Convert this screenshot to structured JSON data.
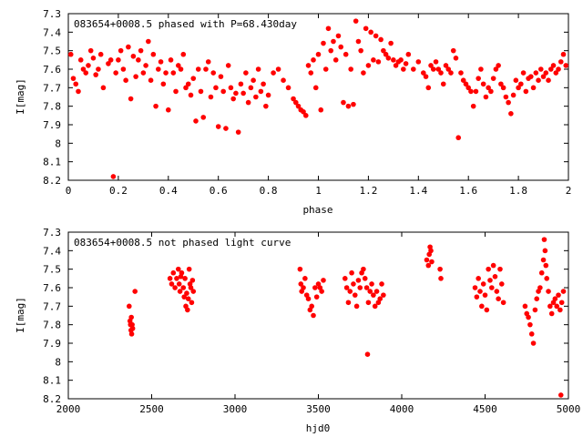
{
  "chart_data": [
    {
      "type": "scatter",
      "title": "083654+0008.5 phased with P=68.430day",
      "xlabel": "phase",
      "ylabel": "I[mag]",
      "xlim": [
        0,
        2
      ],
      "ylim": [
        8.2,
        7.3
      ],
      "y_inverted": true,
      "x_ticks": [
        0,
        0.2,
        0.4,
        0.6,
        0.8,
        1,
        1.2,
        1.4,
        1.6,
        1.8,
        2
      ],
      "x_tick_labels": [
        "0",
        "0.2",
        "0.4",
        "0.6",
        "0.8",
        "1",
        "1.2",
        "1.4",
        "1.6",
        "1.8",
        "2"
      ],
      "y_ticks": [
        7.3,
        7.4,
        7.5,
        7.6,
        7.7,
        7.8,
        7.9,
        8,
        8.1,
        8.2
      ],
      "y_tick_labels": [
        "7.3",
        "7.4",
        "7.5",
        "7.6",
        "7.7",
        "7.8",
        "7.9",
        "8",
        "8.1",
        "8.2"
      ],
      "grid": false,
      "marker_color": "#ff0000",
      "points": [
        [
          0.01,
          7.52
        ],
        [
          0.02,
          7.65
        ],
        [
          0.03,
          7.68
        ],
        [
          0.04,
          7.72
        ],
        [
          0.05,
          7.55
        ],
        [
          0.06,
          7.6
        ],
        [
          0.07,
          7.62
        ],
        [
          0.08,
          7.58
        ],
        [
          0.09,
          7.5
        ],
        [
          0.1,
          7.54
        ],
        [
          0.11,
          7.63
        ],
        [
          0.12,
          7.6
        ],
        [
          0.13,
          7.52
        ],
        [
          0.14,
          7.7
        ],
        [
          0.16,
          7.57
        ],
        [
          0.17,
          7.55
        ],
        [
          0.18,
          8.18
        ],
        [
          0.19,
          7.62
        ],
        [
          0.2,
          7.55
        ],
        [
          0.21,
          7.5
        ],
        [
          0.22,
          7.6
        ],
        [
          0.23,
          7.66
        ],
        [
          0.24,
          7.48
        ],
        [
          0.25,
          7.76
        ],
        [
          0.26,
          7.53
        ],
        [
          0.27,
          7.64
        ],
        [
          0.28,
          7.55
        ],
        [
          0.29,
          7.5
        ],
        [
          0.3,
          7.62
        ],
        [
          0.31,
          7.58
        ],
        [
          0.32,
          7.45
        ],
        [
          0.33,
          7.66
        ],
        [
          0.34,
          7.52
        ],
        [
          0.35,
          7.8
        ],
        [
          0.36,
          7.6
        ],
        [
          0.37,
          7.56
        ],
        [
          0.38,
          7.68
        ],
        [
          0.39,
          7.62
        ],
        [
          0.4,
          7.82
        ],
        [
          0.41,
          7.55
        ],
        [
          0.42,
          7.62
        ],
        [
          0.43,
          7.72
        ],
        [
          0.44,
          7.58
        ],
        [
          0.45,
          7.6
        ],
        [
          0.46,
          7.52
        ],
        [
          0.47,
          7.7
        ],
        [
          0.48,
          7.68
        ],
        [
          0.49,
          7.74
        ],
        [
          0.5,
          7.65
        ],
        [
          0.51,
          7.88
        ],
        [
          0.52,
          7.6
        ],
        [
          0.53,
          7.72
        ],
        [
          0.54,
          7.86
        ],
        [
          0.55,
          7.6
        ],
        [
          0.56,
          7.56
        ],
        [
          0.57,
          7.75
        ],
        [
          0.58,
          7.62
        ],
        [
          0.59,
          7.7
        ],
        [
          0.6,
          7.91
        ],
        [
          0.61,
          7.64
        ],
        [
          0.62,
          7.72
        ],
        [
          0.63,
          7.92
        ],
        [
          0.64,
          7.58
        ],
        [
          0.65,
          7.7
        ],
        [
          0.66,
          7.76
        ],
        [
          0.67,
          7.73
        ],
        [
          0.68,
          7.94
        ],
        [
          0.69,
          7.68
        ],
        [
          0.7,
          7.73
        ],
        [
          0.71,
          7.62
        ],
        [
          0.72,
          7.78
        ],
        [
          0.73,
          7.7
        ],
        [
          0.74,
          7.66
        ],
        [
          0.75,
          7.75
        ],
        [
          0.76,
          7.6
        ],
        [
          0.77,
          7.72
        ],
        [
          0.78,
          7.68
        ],
        [
          0.79,
          7.8
        ],
        [
          0.8,
          7.74
        ],
        [
          0.82,
          7.62
        ],
        [
          0.84,
          7.6
        ],
        [
          0.86,
          7.66
        ],
        [
          0.88,
          7.7
        ],
        [
          0.9,
          7.76
        ],
        [
          0.91,
          7.78
        ],
        [
          0.92,
          7.8
        ],
        [
          0.93,
          7.82
        ],
        [
          0.94,
          7.83
        ],
        [
          0.95,
          7.85
        ],
        [
          0.96,
          7.58
        ],
        [
          0.97,
          7.62
        ],
        [
          0.98,
          7.55
        ],
        [
          0.99,
          7.7
        ],
        [
          1.0,
          7.52
        ],
        [
          1.01,
          7.82
        ],
        [
          1.02,
          7.46
        ],
        [
          1.03,
          7.6
        ],
        [
          1.04,
          7.38
        ],
        [
          1.05,
          7.5
        ],
        [
          1.06,
          7.45
        ],
        [
          1.07,
          7.55
        ],
        [
          1.08,
          7.42
        ],
        [
          1.09,
          7.48
        ],
        [
          1.1,
          7.78
        ],
        [
          1.11,
          7.52
        ],
        [
          1.12,
          7.8
        ],
        [
          1.13,
          7.6
        ],
        [
          1.14,
          7.79
        ],
        [
          1.15,
          7.34
        ],
        [
          1.16,
          7.45
        ],
        [
          1.17,
          7.5
        ],
        [
          1.18,
          7.62
        ],
        [
          1.19,
          7.38
        ],
        [
          1.2,
          7.58
        ],
        [
          1.21,
          7.4
        ],
        [
          1.22,
          7.55
        ],
        [
          1.23,
          7.42
        ],
        [
          1.24,
          7.56
        ],
        [
          1.25,
          7.44
        ],
        [
          1.26,
          7.5
        ],
        [
          1.27,
          7.52
        ],
        [
          1.28,
          7.54
        ],
        [
          1.29,
          7.46
        ],
        [
          1.3,
          7.55
        ],
        [
          1.31,
          7.58
        ],
        [
          1.32,
          7.56
        ],
        [
          1.33,
          7.55
        ],
        [
          1.34,
          7.6
        ],
        [
          1.35,
          7.57
        ],
        [
          1.36,
          7.52
        ],
        [
          1.38,
          7.6
        ],
        [
          1.4,
          7.56
        ],
        [
          1.42,
          7.62
        ],
        [
          1.43,
          7.64
        ],
        [
          1.44,
          7.7
        ],
        [
          1.45,
          7.58
        ],
        [
          1.46,
          7.6
        ],
        [
          1.47,
          7.56
        ],
        [
          1.48,
          7.6
        ],
        [
          1.49,
          7.62
        ],
        [
          1.5,
          7.68
        ],
        [
          1.51,
          7.58
        ],
        [
          1.52,
          7.6
        ],
        [
          1.53,
          7.62
        ],
        [
          1.54,
          7.5
        ],
        [
          1.55,
          7.54
        ],
        [
          1.56,
          7.97
        ],
        [
          1.57,
          7.62
        ],
        [
          1.58,
          7.66
        ],
        [
          1.59,
          7.68
        ],
        [
          1.6,
          7.7
        ],
        [
          1.61,
          7.72
        ],
        [
          1.62,
          7.8
        ],
        [
          1.63,
          7.72
        ],
        [
          1.64,
          7.65
        ],
        [
          1.65,
          7.6
        ],
        [
          1.66,
          7.68
        ],
        [
          1.67,
          7.75
        ],
        [
          1.68,
          7.7
        ],
        [
          1.69,
          7.72
        ],
        [
          1.7,
          7.65
        ],
        [
          1.71,
          7.6
        ],
        [
          1.72,
          7.58
        ],
        [
          1.73,
          7.68
        ],
        [
          1.74,
          7.7
        ],
        [
          1.75,
          7.75
        ],
        [
          1.76,
          7.78
        ],
        [
          1.77,
          7.84
        ],
        [
          1.78,
          7.74
        ],
        [
          1.79,
          7.66
        ],
        [
          1.8,
          7.7
        ],
        [
          1.81,
          7.68
        ],
        [
          1.82,
          7.62
        ],
        [
          1.83,
          7.72
        ],
        [
          1.84,
          7.65
        ],
        [
          1.85,
          7.64
        ],
        [
          1.86,
          7.7
        ],
        [
          1.87,
          7.62
        ],
        [
          1.88,
          7.66
        ],
        [
          1.89,
          7.6
        ],
        [
          1.9,
          7.64
        ],
        [
          1.91,
          7.62
        ],
        [
          1.92,
          7.66
        ],
        [
          1.93,
          7.6
        ],
        [
          1.94,
          7.58
        ],
        [
          1.95,
          7.62
        ],
        [
          1.96,
          7.6
        ],
        [
          1.97,
          7.56
        ],
        [
          1.98,
          7.52
        ],
        [
          1.99,
          7.58
        ]
      ]
    },
    {
      "type": "scatter",
      "title": "083654+0008.5 not phased light curve",
      "xlabel": "hjd0",
      "ylabel": "I[mag]",
      "xlim": [
        2000,
        5000
      ],
      "ylim": [
        8.2,
        7.3
      ],
      "y_inverted": true,
      "x_ticks": [
        2000,
        2500,
        3000,
        3500,
        4000,
        4500,
        5000
      ],
      "x_tick_labels": [
        "2000",
        "2500",
        "3000",
        "3500",
        "4000",
        "4500",
        "5000"
      ],
      "y_ticks": [
        7.3,
        7.4,
        7.5,
        7.6,
        7.7,
        7.8,
        7.9,
        8,
        8.1,
        8.2
      ],
      "y_tick_labels": [
        "7.3",
        "7.4",
        "7.5",
        "7.6",
        "7.7",
        "7.8",
        "7.9",
        "8",
        "8.1",
        "8.2"
      ],
      "grid": false,
      "marker_color": "#ff0000",
      "points": [
        [
          2365,
          7.7
        ],
        [
          2370,
          7.78
        ],
        [
          2373,
          7.8
        ],
        [
          2376,
          7.83
        ],
        [
          2378,
          7.76
        ],
        [
          2380,
          7.85
        ],
        [
          2383,
          7.8
        ],
        [
          2386,
          7.82
        ],
        [
          2400,
          7.62
        ],
        [
          2610,
          7.55
        ],
        [
          2620,
          7.58
        ],
        [
          2630,
          7.52
        ],
        [
          2640,
          7.6
        ],
        [
          2650,
          7.55
        ],
        [
          2660,
          7.5
        ],
        [
          2665,
          7.58
        ],
        [
          2670,
          7.62
        ],
        [
          2675,
          7.54
        ],
        [
          2680,
          7.52
        ],
        [
          2690,
          7.6
        ],
        [
          2695,
          7.65
        ],
        [
          2700,
          7.55
        ],
        [
          2705,
          7.7
        ],
        [
          2710,
          7.63
        ],
        [
          2715,
          7.72
        ],
        [
          2720,
          7.66
        ],
        [
          2725,
          7.5
        ],
        [
          2730,
          7.58
        ],
        [
          2735,
          7.6
        ],
        [
          2740,
          7.68
        ],
        [
          2745,
          7.56
        ],
        [
          2750,
          7.62
        ],
        [
          3390,
          7.5
        ],
        [
          3395,
          7.58
        ],
        [
          3400,
          7.62
        ],
        [
          3410,
          7.6
        ],
        [
          3420,
          7.55
        ],
        [
          3430,
          7.64
        ],
        [
          3440,
          7.66
        ],
        [
          3450,
          7.72
        ],
        [
          3460,
          7.7
        ],
        [
          3470,
          7.75
        ],
        [
          3480,
          7.6
        ],
        [
          3490,
          7.65
        ],
        [
          3500,
          7.58
        ],
        [
          3510,
          7.6
        ],
        [
          3520,
          7.62
        ],
        [
          3530,
          7.56
        ],
        [
          3660,
          7.55
        ],
        [
          3670,
          7.6
        ],
        [
          3680,
          7.68
        ],
        [
          3690,
          7.62
        ],
        [
          3700,
          7.52
        ],
        [
          3710,
          7.58
        ],
        [
          3720,
          7.64
        ],
        [
          3730,
          7.7
        ],
        [
          3740,
          7.56
        ],
        [
          3750,
          7.6
        ],
        [
          3760,
          7.52
        ],
        [
          3770,
          7.5
        ],
        [
          3780,
          7.55
        ],
        [
          3790,
          7.6
        ],
        [
          3795,
          7.96
        ],
        [
          3800,
          7.68
        ],
        [
          3810,
          7.62
        ],
        [
          3820,
          7.58
        ],
        [
          3830,
          7.64
        ],
        [
          3840,
          7.7
        ],
        [
          3850,
          7.62
        ],
        [
          3860,
          7.68
        ],
        [
          3870,
          7.66
        ],
        [
          3880,
          7.58
        ],
        [
          3890,
          7.64
        ],
        [
          4150,
          7.45
        ],
        [
          4160,
          7.48
        ],
        [
          4165,
          7.42
        ],
        [
          4170,
          7.38
        ],
        [
          4175,
          7.4
        ],
        [
          4180,
          7.46
        ],
        [
          4230,
          7.5
        ],
        [
          4235,
          7.55
        ],
        [
          4440,
          7.6
        ],
        [
          4450,
          7.65
        ],
        [
          4460,
          7.55
        ],
        [
          4470,
          7.62
        ],
        [
          4480,
          7.7
        ],
        [
          4490,
          7.58
        ],
        [
          4500,
          7.64
        ],
        [
          4510,
          7.72
        ],
        [
          4520,
          7.5
        ],
        [
          4530,
          7.56
        ],
        [
          4540,
          7.6
        ],
        [
          4550,
          7.48
        ],
        [
          4560,
          7.54
        ],
        [
          4570,
          7.62
        ],
        [
          4580,
          7.66
        ],
        [
          4590,
          7.5
        ],
        [
          4600,
          7.58
        ],
        [
          4610,
          7.68
        ],
        [
          4740,
          7.7
        ],
        [
          4750,
          7.74
        ],
        [
          4760,
          7.76
        ],
        [
          4770,
          7.8
        ],
        [
          4780,
          7.85
        ],
        [
          4790,
          7.9
        ],
        [
          4800,
          7.72
        ],
        [
          4810,
          7.66
        ],
        [
          4820,
          7.62
        ],
        [
          4830,
          7.6
        ],
        [
          4840,
          7.52
        ],
        [
          4850,
          7.45
        ],
        [
          4855,
          7.34
        ],
        [
          4860,
          7.4
        ],
        [
          4865,
          7.48
        ],
        [
          4870,
          7.55
        ],
        [
          4880,
          7.62
        ],
        [
          4890,
          7.7
        ],
        [
          4900,
          7.74
        ],
        [
          4910,
          7.68
        ],
        [
          4920,
          7.66
        ],
        [
          4930,
          7.7
        ],
        [
          4940,
          7.64
        ],
        [
          4950,
          7.72
        ],
        [
          4955,
          8.18
        ],
        [
          4960,
          7.68
        ],
        [
          4970,
          7.62
        ]
      ]
    }
  ]
}
